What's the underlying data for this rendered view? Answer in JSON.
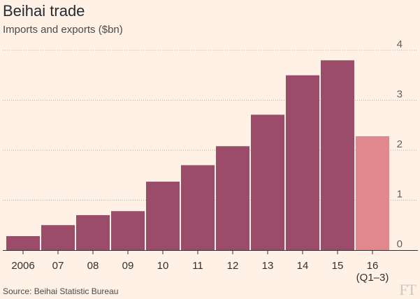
{
  "chart_data": {
    "type": "bar",
    "title": "Beihai trade",
    "subtitle": "Imports and exports ($bn)",
    "categories": [
      "2006",
      "07",
      "08",
      "09",
      "10",
      "11",
      "12",
      "13",
      "14",
      "15",
      "16\n(Q1–3)"
    ],
    "values": [
      0.28,
      0.5,
      0.7,
      0.78,
      1.37,
      1.7,
      2.08,
      2.71,
      3.5,
      3.8,
      2.28
    ],
    "ylim": [
      0,
      4
    ],
    "yticks": [
      0,
      1,
      2,
      3,
      4
    ],
    "grid": true,
    "y_axis_position": "right",
    "bar_color": "#9a4c68",
    "highlight_color": "#e0888e",
    "highlight_index": 10
  },
  "source": "Source: Beihai Statistic Bureau",
  "logo": "FT"
}
